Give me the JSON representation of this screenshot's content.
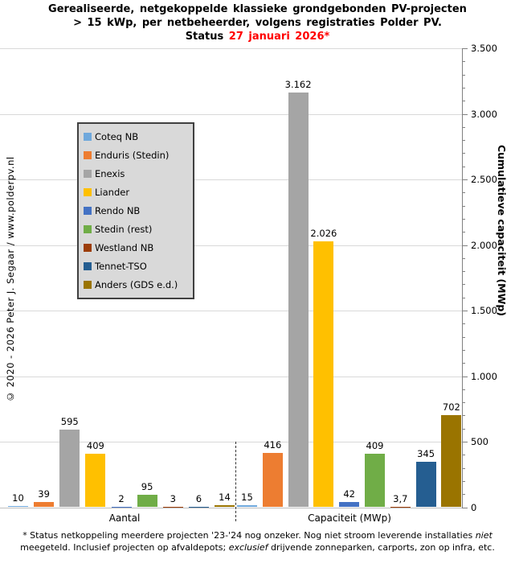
{
  "title": {
    "line1": "Gerealiseerde, netgekoppelde klassieke grondgebonden PV-projecten",
    "line2": "> 15 kWp, per netbeheerder, volgens registraties Polder PV.",
    "status_label": "Status ",
    "status_date": "27 januari 2026*",
    "status_color": "#ff0000"
  },
  "watermark": "© 2020 - 2026 Peter J. Segaar / www.polderpv.nl",
  "chart_data": {
    "type": "bar",
    "categories": [
      "Aantal",
      "Capaciteit (MWp)"
    ],
    "series": [
      {
        "name": "Coteq NB",
        "color": "#6fa8dc",
        "values": [
          10,
          15
        ],
        "labels": [
          "10",
          "15"
        ]
      },
      {
        "name": "Enduris (Stedin)",
        "color": "#ed7d31",
        "values": [
          39,
          416
        ],
        "labels": [
          "39",
          "416"
        ]
      },
      {
        "name": "Enexis",
        "color": "#a5a5a5",
        "values": [
          595,
          3162
        ],
        "labels": [
          "595",
          "3.162"
        ]
      },
      {
        "name": "Liander",
        "color": "#ffc000",
        "values": [
          409,
          2026
        ],
        "labels": [
          "409",
          "2.026"
        ]
      },
      {
        "name": "Rendo NB",
        "color": "#4472c4",
        "values": [
          2,
          42
        ],
        "labels": [
          "2",
          "42"
        ]
      },
      {
        "name": "Stedin (rest)",
        "color": "#70ad47",
        "values": [
          95,
          409
        ],
        "labels": [
          "95",
          "409"
        ]
      },
      {
        "name": "Westland NB",
        "color": "#9c3d09",
        "values": [
          3,
          3.7
        ],
        "labels": [
          "3",
          "3,7"
        ]
      },
      {
        "name": "Tennet-TSO",
        "color": "#255e91",
        "values": [
          6,
          345
        ],
        "labels": [
          "6",
          "345"
        ]
      },
      {
        "name": "Anders (GDS e.d.)",
        "color": "#9a7400",
        "values": [
          14,
          702
        ],
        "labels": [
          "14",
          "702"
        ]
      }
    ],
    "ylabel": "Cumulatieve capaciteit (MWp)",
    "ylim": [
      0,
      3500
    ],
    "yticks": [
      {
        "value": 0,
        "label": "0"
      },
      {
        "value": 500,
        "label": "500"
      },
      {
        "value": 1000,
        "label": "1.000"
      },
      {
        "value": 1500,
        "label": "1.500"
      },
      {
        "value": 2000,
        "label": "2.000"
      },
      {
        "value": 2500,
        "label": "2.500"
      },
      {
        "value": 3000,
        "label": "3.000"
      },
      {
        "value": 3500,
        "label": "3.500"
      }
    ],
    "ytick_minor_step": 100,
    "grid": "horizontal major gridlines every 500",
    "legend_position": "upper-left inside plot",
    "group_separator": "dashed vertical line between categories"
  },
  "footnote": {
    "segments": [
      {
        "text": "* Status netkoppeling meerdere projecten '23-'24 nog onzeker. Nog niet stroom leverende installaties ",
        "italic": false
      },
      {
        "text": "niet",
        "italic": true
      },
      {
        "text": " meegeteld. Inclusief projecten op afvaldepots; ",
        "italic": false
      },
      {
        "text": "exclusief",
        "italic": true
      },
      {
        "text": " drijvende zonneparken, carports, zon op infra, etc.",
        "italic": false
      }
    ]
  }
}
